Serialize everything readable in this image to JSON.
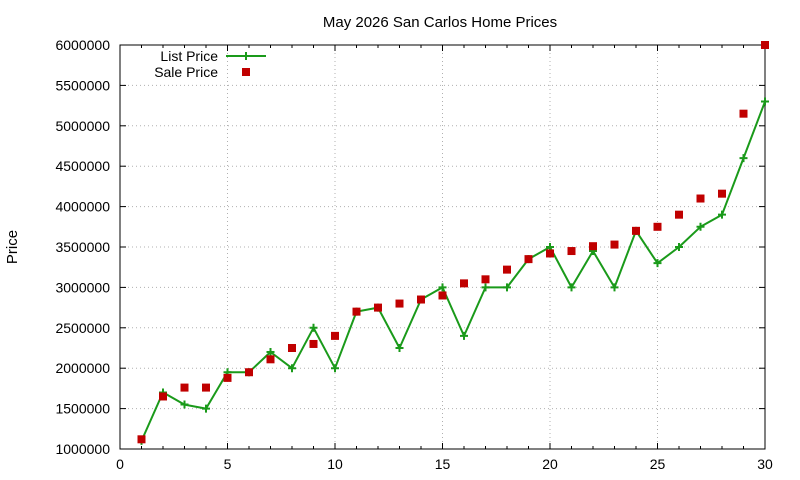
{
  "chart_data": {
    "type": "line",
    "title": "May 2026 San Carlos Home Prices",
    "xlabel": "",
    "ylabel": "Price",
    "xlim": [
      0,
      30
    ],
    "ylim": [
      1000000,
      6000000
    ],
    "xticks": [
      0,
      5,
      10,
      15,
      20,
      25,
      30
    ],
    "yticks": [
      1000000,
      1500000,
      2000000,
      2500000,
      3000000,
      3500000,
      4000000,
      4500000,
      5000000,
      5500000,
      6000000
    ],
    "grid": true,
    "legend_position": "top-left",
    "x": [
      1,
      2,
      3,
      4,
      5,
      6,
      7,
      8,
      9,
      10,
      11,
      12,
      13,
      14,
      15,
      16,
      17,
      18,
      19,
      20,
      21,
      22,
      23,
      24,
      25,
      26,
      27,
      28,
      29,
      30
    ],
    "series": [
      {
        "name": "List Price",
        "style": "line-with-plus-markers",
        "color": "#1a9a1a",
        "values": [
          1100000,
          1700000,
          1550000,
          1500000,
          1950000,
          1950000,
          2200000,
          2000000,
          2500000,
          2000000,
          2700000,
          2750000,
          2250000,
          2850000,
          3000000,
          2400000,
          3000000,
          3000000,
          3350000,
          3500000,
          3000000,
          3450000,
          3000000,
          3700000,
          3300000,
          3500000,
          3750000,
          3900000,
          4600000,
          5300000
        ]
      },
      {
        "name": "Sale Price",
        "style": "square-markers",
        "color": "#c00000",
        "values": [
          1120000,
          1650000,
          1760000,
          1760000,
          1880000,
          1950000,
          2110000,
          2250000,
          2300000,
          2400000,
          2700000,
          2750000,
          2800000,
          2850000,
          2900000,
          3050000,
          3100000,
          3220000,
          3350000,
          3420000,
          3450000,
          3510000,
          3530000,
          3700000,
          3750000,
          3900000,
          4100000,
          4160000,
          5150000,
          6000000
        ]
      }
    ]
  }
}
